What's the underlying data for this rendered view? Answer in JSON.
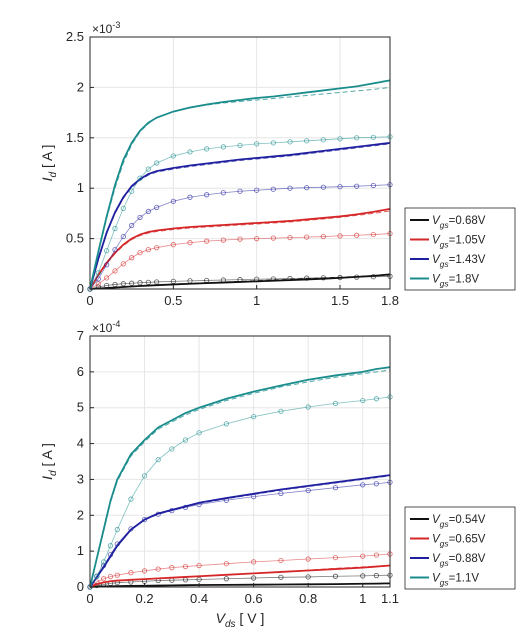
{
  "colors": {
    "black": "#111111",
    "red": "#d62728",
    "blue": "#1f1fa0",
    "teal": "#1a8c8c",
    "axis": "#262626",
    "grid": "#e6e6e6"
  },
  "chart_data": [
    {
      "type": "line",
      "id": "top",
      "exponent_label": "×10",
      "exponent_power": "-3",
      "ylabel_main": "I",
      "ylabel_sub": "d",
      "ylabel_unit": " [ A ]",
      "xlabel_main": "",
      "xlabel_sub": "",
      "xlabel_unit": "",
      "xlim": [
        0,
        1.8
      ],
      "ylim": [
        0,
        2.5
      ],
      "xticks": [
        0,
        0.5,
        1,
        1.5,
        1.8
      ],
      "xtick_labels": [
        "0",
        "0.5",
        "1",
        "1.5",
        "1.8"
      ],
      "yticks": [
        0,
        0.5,
        1,
        1.5,
        2,
        2.5
      ],
      "ytick_labels": [
        "0",
        "0.5",
        "1",
        "1.5",
        "2",
        "2.5"
      ],
      "grid": true,
      "legend_position": "right",
      "x": [
        0,
        0.05,
        0.1,
        0.15,
        0.2,
        0.25,
        0.3,
        0.35,
        0.4,
        0.5,
        0.6,
        0.7,
        0.8,
        0.9,
        1.0,
        1.1,
        1.2,
        1.3,
        1.4,
        1.5,
        1.6,
        1.7,
        1.8
      ],
      "series": [
        {
          "name": "=0.68V",
          "vsub": "gs",
          "color": "black",
          "solid": [
            0,
            0.005,
            0.01,
            0.015,
            0.02,
            0.025,
            0.03,
            0.034,
            0.038,
            0.045,
            0.052,
            0.058,
            0.064,
            0.07,
            0.076,
            0.082,
            0.088,
            0.095,
            0.102,
            0.11,
            0.12,
            0.13,
            0.145
          ],
          "dashed": [
            0,
            0.005,
            0.01,
            0.015,
            0.02,
            0.025,
            0.03,
            0.035,
            0.04,
            0.048,
            0.055,
            0.062,
            0.069,
            0.076,
            0.083,
            0.09,
            0.097,
            0.104,
            0.11,
            0.117,
            0.124,
            0.131,
            0.138
          ],
          "markers": [
            0,
            0.02,
            0.035,
            0.045,
            0.052,
            0.057,
            0.062,
            0.066,
            0.07,
            0.076,
            0.081,
            0.085,
            0.089,
            0.093,
            0.097,
            0.1,
            0.104,
            0.108,
            0.111,
            0.114,
            0.118,
            0.122,
            0.125
          ]
        },
        {
          "name": "=1.05V",
          "vsub": "gs",
          "color": "red",
          "solid": [
            0,
            0.14,
            0.26,
            0.36,
            0.44,
            0.5,
            0.54,
            0.565,
            0.58,
            0.6,
            0.615,
            0.625,
            0.635,
            0.645,
            0.655,
            0.665,
            0.675,
            0.69,
            0.705,
            0.72,
            0.74,
            0.765,
            0.795
          ],
          "dashed": [
            0,
            0.13,
            0.25,
            0.35,
            0.43,
            0.49,
            0.53,
            0.555,
            0.57,
            0.59,
            0.605,
            0.615,
            0.625,
            0.635,
            0.645,
            0.655,
            0.665,
            0.68,
            0.695,
            0.71,
            0.73,
            0.75,
            0.775
          ],
          "markers": [
            0,
            0.05,
            0.11,
            0.18,
            0.25,
            0.31,
            0.36,
            0.39,
            0.41,
            0.44,
            0.46,
            0.475,
            0.485,
            0.495,
            0.5,
            0.505,
            0.51,
            0.515,
            0.52,
            0.527,
            0.533,
            0.54,
            0.55
          ]
        },
        {
          "name": "=1.43V",
          "vsub": "gs",
          "color": "blue",
          "solid": [
            0,
            0.3,
            0.56,
            0.76,
            0.91,
            1.02,
            1.09,
            1.14,
            1.17,
            1.2,
            1.225,
            1.245,
            1.265,
            1.285,
            1.3,
            1.315,
            1.33,
            1.35,
            1.37,
            1.39,
            1.41,
            1.43,
            1.45
          ],
          "dashed": [
            0,
            0.29,
            0.55,
            0.75,
            0.9,
            1.01,
            1.08,
            1.13,
            1.16,
            1.19,
            1.215,
            1.235,
            1.255,
            1.275,
            1.29,
            1.305,
            1.32,
            1.34,
            1.36,
            1.38,
            1.4,
            1.42,
            1.44
          ],
          "markers": [
            0,
            0.1,
            0.24,
            0.39,
            0.52,
            0.63,
            0.71,
            0.77,
            0.81,
            0.87,
            0.91,
            0.935,
            0.955,
            0.97,
            0.98,
            0.99,
            1.0,
            1.005,
            1.01,
            1.015,
            1.02,
            1.027,
            1.035
          ]
        },
        {
          "name": "=1.8V",
          "vsub": "gs",
          "color": "teal",
          "solid": [
            0,
            0.37,
            0.72,
            1.03,
            1.28,
            1.45,
            1.57,
            1.65,
            1.7,
            1.76,
            1.8,
            1.83,
            1.855,
            1.875,
            1.895,
            1.91,
            1.93,
            1.95,
            1.97,
            1.99,
            2.01,
            2.04,
            2.07
          ],
          "dashed": [
            0,
            0.36,
            0.7,
            1.0,
            1.25,
            1.43,
            1.56,
            1.64,
            1.7,
            1.76,
            1.8,
            1.825,
            1.845,
            1.86,
            1.875,
            1.89,
            1.905,
            1.92,
            1.935,
            1.95,
            1.965,
            1.98,
            2.0
          ],
          "markers": [
            0,
            0.16,
            0.38,
            0.6,
            0.8,
            0.97,
            1.1,
            1.19,
            1.25,
            1.32,
            1.36,
            1.39,
            1.41,
            1.425,
            1.44,
            1.45,
            1.46,
            1.47,
            1.48,
            1.49,
            1.5,
            1.505,
            1.51
          ]
        }
      ]
    },
    {
      "type": "line",
      "id": "bottom",
      "exponent_label": "×10",
      "exponent_power": "-4",
      "ylabel_main": "I",
      "ylabel_sub": "d",
      "ylabel_unit": " [ A ]",
      "xlabel_main": "V",
      "xlabel_sub": "ds",
      "xlabel_unit": " [ V ]",
      "xlim": [
        0,
        1.1
      ],
      "ylim": [
        0,
        7
      ],
      "xticks": [
        0,
        0.2,
        0.4,
        0.6,
        0.8,
        1,
        1.1
      ],
      "xtick_labels": [
        "0",
        "0.2",
        "0.4",
        "0.6",
        "0.8",
        "1",
        "1.1"
      ],
      "yticks": [
        0,
        1,
        2,
        3,
        4,
        5,
        6,
        7
      ],
      "ytick_labels": [
        "0",
        "1",
        "2",
        "3",
        "4",
        "5",
        "6",
        "7"
      ],
      "grid": true,
      "legend_position": "right",
      "x": [
        0,
        0.025,
        0.05,
        0.075,
        0.1,
        0.15,
        0.2,
        0.25,
        0.3,
        0.35,
        0.4,
        0.5,
        0.6,
        0.7,
        0.8,
        0.9,
        1.0,
        1.05,
        1.1
      ],
      "series": [
        {
          "name": "=0.54V",
          "vsub": "gs",
          "color": "black",
          "solid": [
            0,
            0.01,
            0.015,
            0.02,
            0.025,
            0.03,
            0.035,
            0.04,
            0.045,
            0.05,
            0.055,
            0.06,
            0.065,
            0.07,
            0.075,
            0.08,
            0.09,
            0.095,
            0.1
          ],
          "dashed": [
            0,
            0.01,
            0.015,
            0.02,
            0.025,
            0.03,
            0.035,
            0.04,
            0.045,
            0.05,
            0.055,
            0.06,
            0.065,
            0.07,
            0.075,
            0.08,
            0.085,
            0.09,
            0.095
          ],
          "markers": [
            0,
            0.04,
            0.07,
            0.1,
            0.12,
            0.14,
            0.16,
            0.18,
            0.19,
            0.2,
            0.21,
            0.23,
            0.25,
            0.27,
            0.28,
            0.3,
            0.31,
            0.32,
            0.33
          ]
        },
        {
          "name": "=0.65V",
          "vsub": "gs",
          "color": "red",
          "solid": [
            0,
            0.08,
            0.13,
            0.16,
            0.18,
            0.2,
            0.22,
            0.24,
            0.26,
            0.28,
            0.3,
            0.34,
            0.38,
            0.42,
            0.46,
            0.5,
            0.54,
            0.57,
            0.6
          ],
          "dashed": [
            0,
            0.08,
            0.13,
            0.16,
            0.18,
            0.2,
            0.22,
            0.24,
            0.26,
            0.28,
            0.3,
            0.34,
            0.38,
            0.42,
            0.47,
            0.52,
            0.56,
            0.58,
            0.6
          ],
          "markers": [
            0,
            0.14,
            0.23,
            0.29,
            0.33,
            0.4,
            0.45,
            0.5,
            0.54,
            0.57,
            0.6,
            0.65,
            0.7,
            0.74,
            0.78,
            0.82,
            0.86,
            0.89,
            0.92
          ]
        },
        {
          "name": "=0.88V",
          "vsub": "gs",
          "color": "blue",
          "solid": [
            0,
            0.28,
            0.55,
            0.85,
            1.15,
            1.6,
            1.88,
            2.05,
            2.15,
            2.25,
            2.35,
            2.48,
            2.6,
            2.72,
            2.82,
            2.92,
            3.02,
            3.07,
            3.12
          ],
          "dashed": [
            0,
            0.27,
            0.54,
            0.84,
            1.14,
            1.59,
            1.87,
            2.03,
            2.13,
            2.23,
            2.33,
            2.46,
            2.58,
            2.7,
            2.8,
            2.9,
            3.0,
            3.05,
            3.1
          ],
          "markers": [
            0,
            0.3,
            0.6,
            0.9,
            1.2,
            1.62,
            1.88,
            2.03,
            2.13,
            2.22,
            2.3,
            2.42,
            2.52,
            2.61,
            2.69,
            2.77,
            2.85,
            2.88,
            2.92
          ]
        },
        {
          "name": "=1.1V",
          "vsub": "gs",
          "color": "teal",
          "solid": [
            0,
            0.8,
            1.6,
            2.4,
            3.0,
            3.7,
            4.1,
            4.45,
            4.65,
            4.85,
            5.0,
            5.25,
            5.45,
            5.62,
            5.78,
            5.9,
            6.0,
            6.08,
            6.13
          ],
          "dashed": [
            0,
            0.78,
            1.55,
            2.35,
            2.95,
            3.65,
            4.05,
            4.4,
            4.6,
            4.8,
            4.95,
            5.2,
            5.4,
            5.58,
            5.72,
            5.85,
            5.95,
            6.0,
            6.05
          ],
          "markers": [
            0,
            0.3,
            0.7,
            1.15,
            1.6,
            2.45,
            3.1,
            3.55,
            3.85,
            4.1,
            4.3,
            4.55,
            4.75,
            4.9,
            5.02,
            5.12,
            5.2,
            5.25,
            5.3
          ]
        }
      ]
    }
  ]
}
